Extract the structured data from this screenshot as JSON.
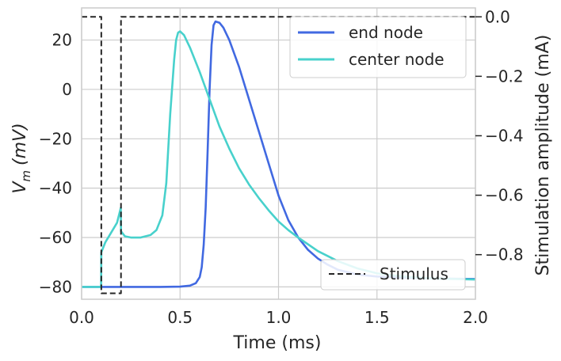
{
  "chart_data": {
    "type": "line",
    "xlabel": "Time (ms)",
    "ylabel_main": "V",
    "ylabel_sub": "m",
    "ylabel_unit": "(mV)",
    "y2label": "Stimulation amplitude (mA)",
    "xlim": [
      0.0,
      2.0
    ],
    "ylim": [
      -85,
      33
    ],
    "y2lim": [
      -0.95,
      0.03
    ],
    "xticks": [
      0.0,
      0.5,
      1.0,
      1.5,
      2.0
    ],
    "xtick_labels": [
      "0.0",
      "0.5",
      "1.0",
      "1.5",
      "2.0"
    ],
    "yticks": [
      20,
      0,
      -20,
      -40,
      -60,
      -80
    ],
    "ytick_labels": [
      "20",
      "0",
      "−20",
      "−40",
      "−60",
      "−80"
    ],
    "y2ticks": [
      0.0,
      -0.2,
      -0.4,
      -0.6,
      -0.8
    ],
    "y2tick_labels": [
      "0.0",
      "−0.2",
      "−0.4",
      "−0.6",
      "−0.8"
    ],
    "grid": true,
    "legend_position": "top-right",
    "legend2_position": "bottom-right",
    "series": [
      {
        "name": "end node",
        "color": "#4169e1",
        "axis": "left",
        "x": [
          0.0,
          0.1,
          0.2,
          0.3,
          0.4,
          0.5,
          0.55,
          0.58,
          0.6,
          0.61,
          0.62,
          0.63,
          0.64,
          0.65,
          0.66,
          0.67,
          0.68,
          0.7,
          0.72,
          0.75,
          0.8,
          0.85,
          0.9,
          0.95,
          1.0,
          1.05,
          1.1,
          1.15,
          1.2,
          1.25,
          1.3,
          1.4,
          1.5,
          1.6,
          1.7,
          1.8,
          2.0
        ],
        "y": [
          -80,
          -80,
          -80,
          -80,
          -80,
          -79.9,
          -79.5,
          -78.5,
          -76,
          -72,
          -63,
          -48,
          -25,
          0,
          18,
          26,
          27.5,
          27,
          25,
          20,
          9,
          -4,
          -17,
          -30,
          -43,
          -53,
          -60,
          -65,
          -68.5,
          -71,
          -73,
          -75,
          -75.8,
          -76.2,
          -76.4,
          -76.6,
          -76.8
        ]
      },
      {
        "name": "center node",
        "color": "#48d1cc",
        "axis": "left",
        "x": [
          0.0,
          0.099,
          0.1,
          0.12,
          0.15,
          0.18,
          0.199,
          0.2,
          0.22,
          0.25,
          0.3,
          0.35,
          0.38,
          0.41,
          0.43,
          0.45,
          0.47,
          0.48,
          0.49,
          0.5,
          0.52,
          0.55,
          0.6,
          0.65,
          0.7,
          0.75,
          0.8,
          0.85,
          0.9,
          0.95,
          1.0,
          1.05,
          1.1,
          1.2,
          1.3,
          1.4,
          1.5,
          1.6,
          1.7,
          1.8,
          2.0
        ],
        "y": [
          -80,
          -80,
          -66,
          -62,
          -58,
          -54,
          -48,
          -57.5,
          -59.5,
          -60,
          -60,
          -59,
          -57,
          -51,
          -38,
          -10,
          12,
          20,
          23,
          23.5,
          22,
          17,
          7,
          -4,
          -15,
          -24,
          -32,
          -38.5,
          -44,
          -49,
          -53.5,
          -57,
          -60,
          -65.5,
          -69.5,
          -72.5,
          -74.5,
          -75.5,
          -76.2,
          -76.6,
          -77
        ]
      },
      {
        "name": "Stimulus",
        "color": "#262626",
        "axis": "right",
        "dash": true,
        "x": [
          0.0,
          0.1,
          0.1,
          0.2,
          0.2,
          2.0
        ],
        "y": [
          0.0,
          0.0,
          -0.93,
          -0.93,
          0.0,
          0.0
        ]
      }
    ]
  }
}
